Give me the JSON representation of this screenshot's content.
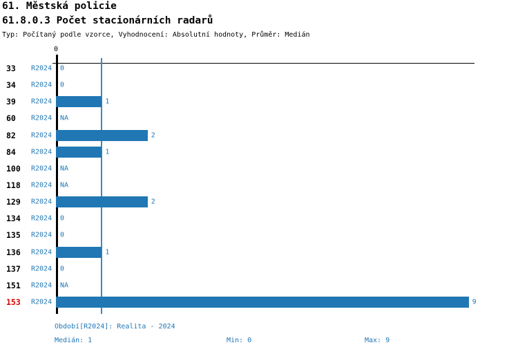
{
  "header": {
    "title": "61. Městská policie",
    "subtitle": "61.8.0.3 Počet stacionárních radarů",
    "meta": "Typ: Počítaný podle vzorce, Vyhodnocení: Absolutní hodnoty, Průměr: Medián"
  },
  "chart_data": {
    "type": "bar",
    "orientation": "horizontal",
    "title": "61.8.0.3 Počet stacionárních radarů",
    "categories": [
      "33",
      "34",
      "39",
      "60",
      "82",
      "84",
      "100",
      "118",
      "129",
      "134",
      "135",
      "136",
      "137",
      "151",
      "153"
    ],
    "series": [
      {
        "name": "R2024",
        "values": [
          0,
          0,
          1,
          null,
          2,
          1,
          null,
          null,
          2,
          0,
          0,
          1,
          0,
          null,
          9
        ]
      }
    ],
    "value_labels": [
      "0",
      "0",
      "1",
      "NA",
      "2",
      "1",
      "NA",
      "NA",
      "2",
      "0",
      "0",
      "1",
      "0",
      "NA",
      "9"
    ],
    "highlighted_category": "153",
    "xlim": [
      0,
      9
    ],
    "x_ticks": [
      {
        "value": 0,
        "label": "0"
      }
    ],
    "reference_line": {
      "value": 1,
      "label": "Medián"
    },
    "median": 1,
    "min": 0,
    "max": 9,
    "legend_position": "none",
    "grid": false,
    "colors": {
      "bar": "#2077b4",
      "value_label": "#1f77b4",
      "series_label": "#1f77b4",
      "category_label": "#000000",
      "highlight": "#dd0000",
      "reference_line": "#3b88c0",
      "axis": "#000000"
    }
  },
  "footer": {
    "period": "Období[R2024]: Realita - 2024",
    "median": "Medián: 1",
    "min": "Min: 0",
    "max": "Max: 9"
  }
}
